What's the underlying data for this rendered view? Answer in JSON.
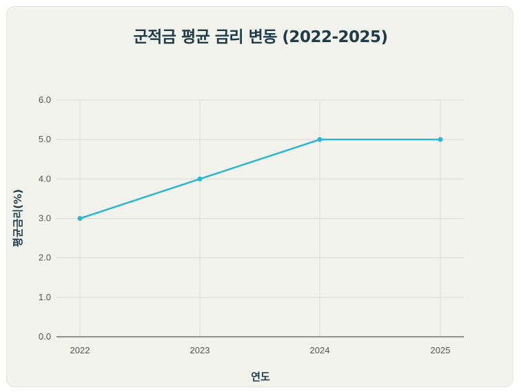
{
  "chart_data": {
    "type": "line",
    "title": "군적금 평균 금리 변동 (2022-2025)",
    "xlabel": "연도",
    "ylabel": "평균금리(%)",
    "categories": [
      "2022",
      "2023",
      "2024",
      "2025"
    ],
    "series": [
      {
        "values": [
          3.0,
          4.0,
          5.0,
          5.0
        ]
      }
    ],
    "ylim": [
      0,
      6
    ],
    "yticks": [
      "0.0",
      "1.0",
      "2.0",
      "3.0",
      "4.0",
      "5.0",
      "6.0"
    ],
    "grid": true,
    "legend": "none"
  },
  "colors": {
    "line": "#2ab7cf",
    "background": "#f3f3ee",
    "grid": "#dcdcd6",
    "axis": "#555555"
  }
}
